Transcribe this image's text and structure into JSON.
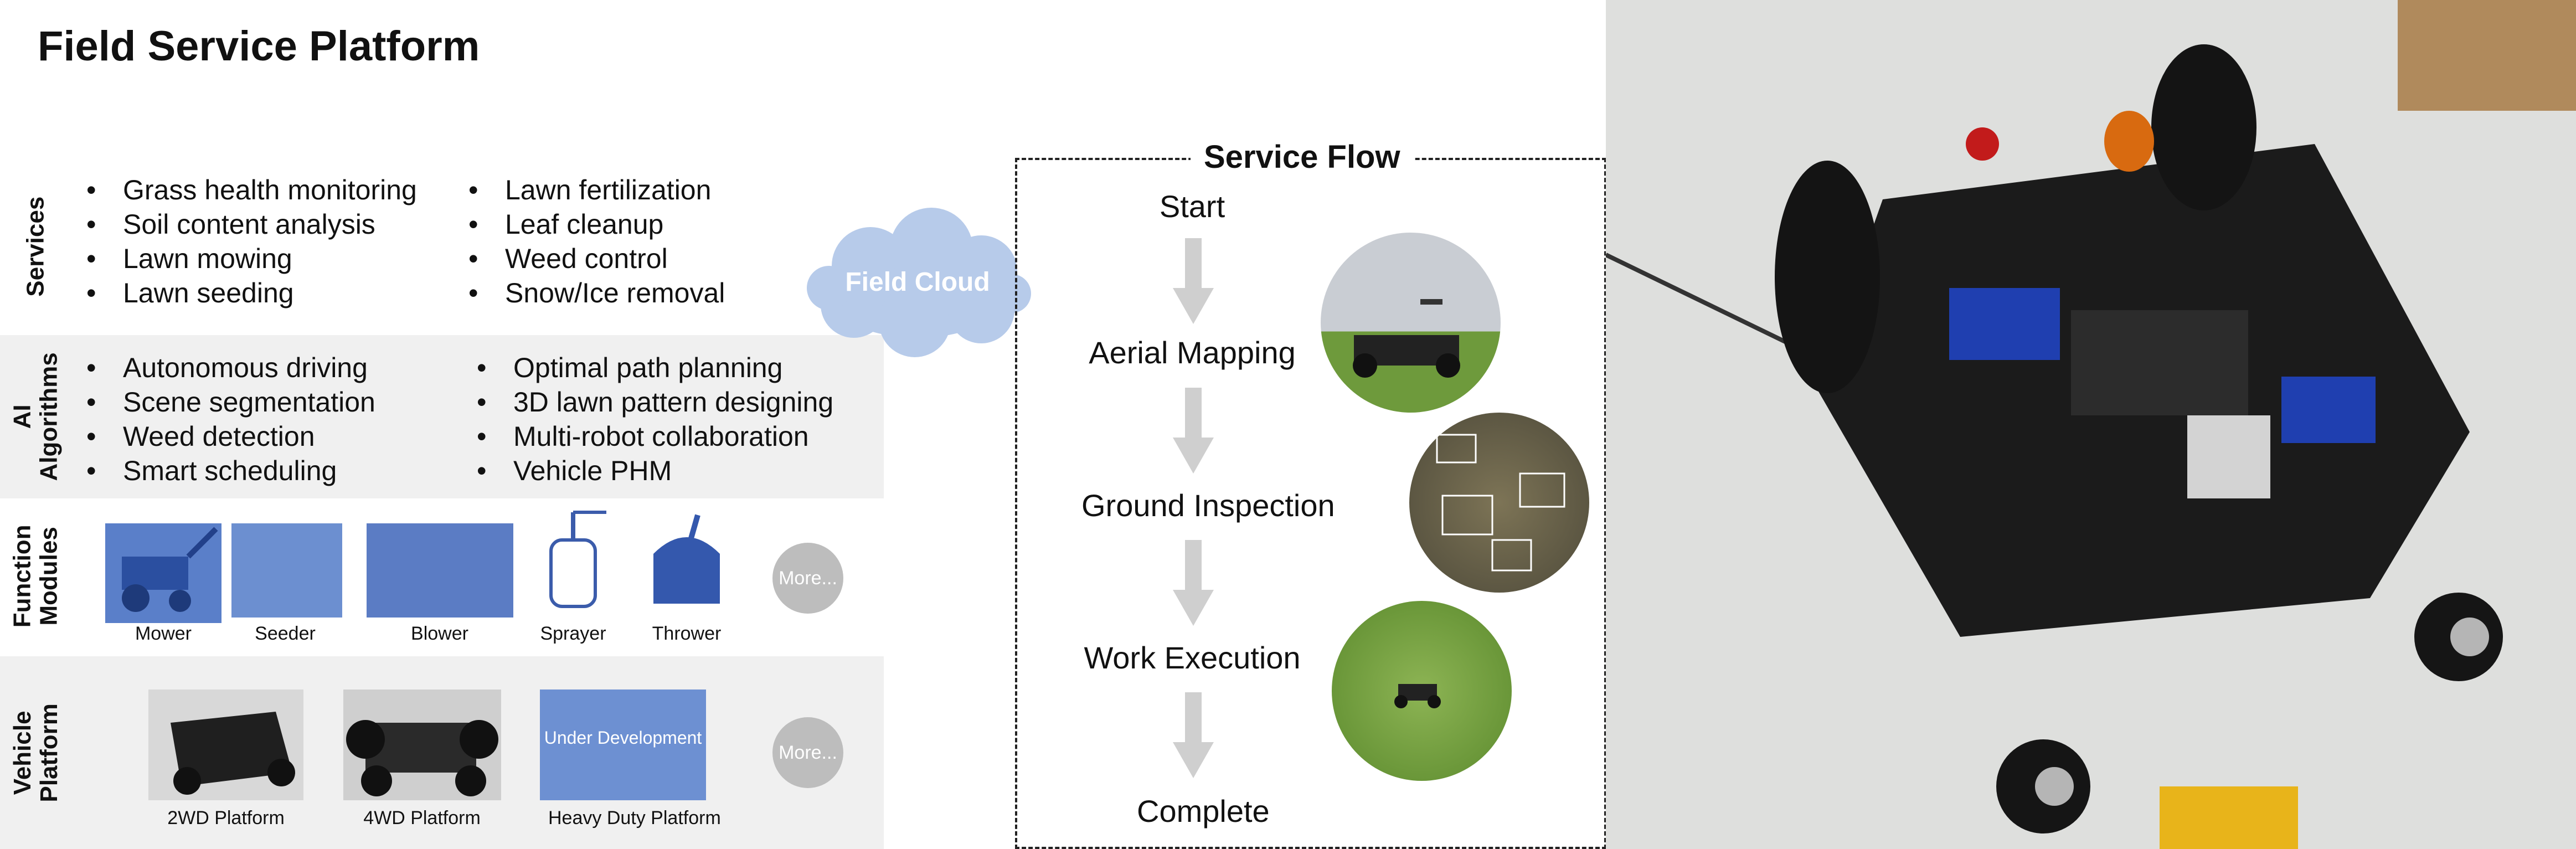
{
  "title": "Field Service Platform",
  "rows": {
    "services": "Services",
    "ai": "AI Algorithms",
    "modules": "Function Modules",
    "vehicle": "Vehicle Platform"
  },
  "services_col1": [
    "Grass health monitoring",
    "Soil content analysis",
    "Lawn mowing",
    "Lawn seeding"
  ],
  "services_col2": [
    "Lawn fertilization",
    "Leaf cleanup",
    "Weed control",
    "Snow/Ice removal"
  ],
  "ai_col1": [
    "Autonomous driving",
    "Scene segmentation",
    "Weed detection",
    "Smart scheduling"
  ],
  "ai_col2": [
    "Optimal path planning",
    "3D lawn pattern designing",
    "Multi-robot collaboration",
    "Vehicle PHM"
  ],
  "modules": [
    "Mower",
    "Seeder",
    "Blower",
    "Sprayer",
    "Thrower"
  ],
  "more": "More...",
  "platforms": [
    "2WD Platform",
    "4WD Platform",
    "Heavy Duty Platform"
  ],
  "under_dev": "Under Development",
  "cloud": "Field Cloud",
  "flow": {
    "title": "Service Flow",
    "steps": [
      "Start",
      "Aerial Mapping",
      "Ground Inspection",
      "Work Execution",
      "Complete"
    ]
  }
}
